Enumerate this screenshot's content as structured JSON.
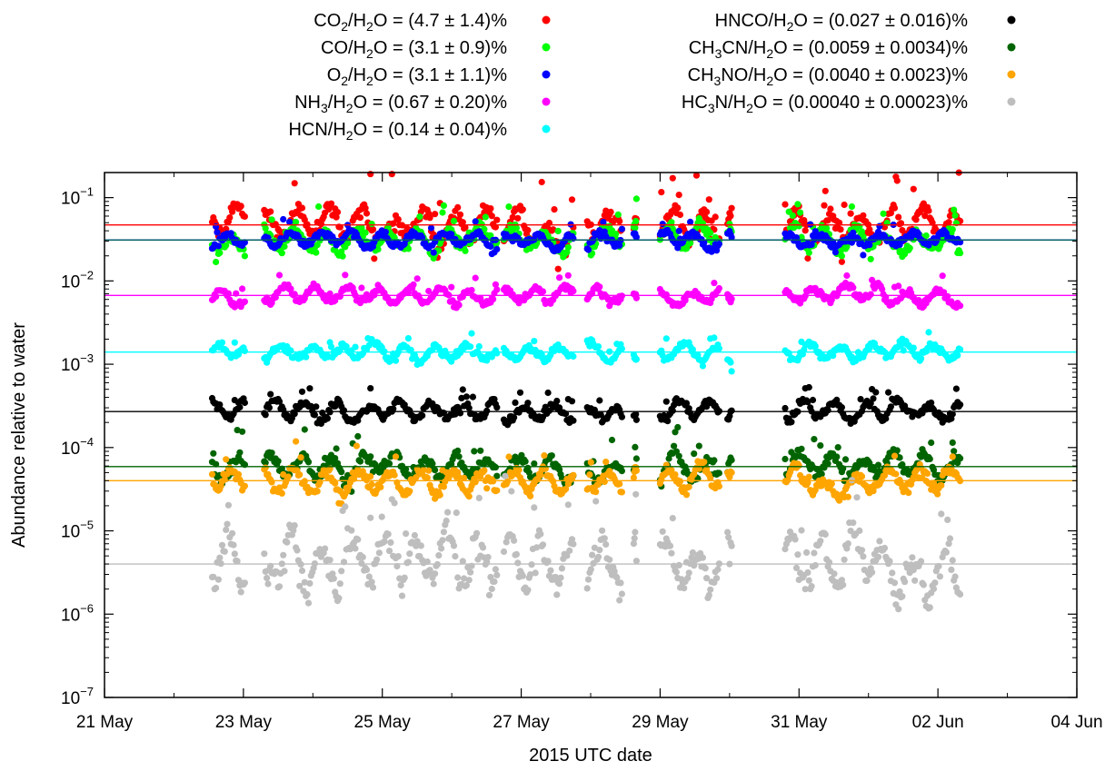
{
  "chart_data": {
    "type": "scatter",
    "title": "",
    "xlabel": "2015 UTC date",
    "ylabel": "Abundance relative to water",
    "yscale": "log",
    "xlim_days_label": [
      "2015-05-21",
      "2015-06-04"
    ],
    "xlim": [
      0,
      14
    ],
    "ylim": [
      1e-07,
      0.2
    ],
    "x_tick_labels": [
      "21 May",
      "23 May",
      "25 May",
      "27 May",
      "29 May",
      "31 May",
      "02 Jun",
      "04 Jun"
    ],
    "x_tick_values": [
      0,
      2,
      4,
      6,
      8,
      10,
      12,
      14
    ],
    "y_tick_labels": [
      {
        "base": "10",
        "exp": "−1",
        "value": 0.1
      },
      {
        "base": "10",
        "exp": "−2",
        "value": 0.01
      },
      {
        "base": "10",
        "exp": "−3",
        "value": 0.001
      },
      {
        "base": "10",
        "exp": "−4",
        "value": 0.0001
      },
      {
        "base": "10",
        "exp": "−5",
        "value": 1e-05
      },
      {
        "base": "10",
        "exp": "−6",
        "value": 1e-06
      },
      {
        "base": "10",
        "exp": "−7",
        "value": 1e-07
      }
    ],
    "grid": false,
    "legend_placement": "top, outside plot, two columns",
    "series": [
      {
        "name_parts": [
          [
            "CO",
            ""
          ],
          [
            "2",
            "sub"
          ],
          [
            "/H",
            ""
          ],
          [
            "2",
            "sub"
          ],
          [
            "O = (4.7 ± 1.4)%",
            ""
          ]
        ],
        "color": "#ff0000",
        "mean": 0.047,
        "noise": 0.28,
        "spike": 0.35
      },
      {
        "name_parts": [
          [
            "CO/H",
            ""
          ],
          [
            "2",
            "sub"
          ],
          [
            "O = (3.1 ± 0.9)%",
            ""
          ]
        ],
        "color": "#00ff00",
        "mean": 0.031,
        "noise": 0.2,
        "spike": 0.18
      },
      {
        "name_parts": [
          [
            "O",
            ""
          ],
          [
            "2",
            "sub"
          ],
          [
            "/H",
            ""
          ],
          [
            "2",
            "sub"
          ],
          [
            "O = (3.1 ± 1.1)%",
            ""
          ]
        ],
        "color": "#0000ff",
        "mean": 0.031,
        "noise": 0.12,
        "spike": 0.12
      },
      {
        "name_parts": [
          [
            "NH",
            ""
          ],
          [
            "3",
            "sub"
          ],
          [
            "/H",
            ""
          ],
          [
            "2",
            "sub"
          ],
          [
            "O = (0.67 ± 0.20)%",
            ""
          ]
        ],
        "color": "#ff00ff",
        "mean": 0.0067,
        "noise": 0.13,
        "spike": 0.1
      },
      {
        "name_parts": [
          [
            "HCN/H",
            ""
          ],
          [
            "2",
            "sub"
          ],
          [
            "O = (0.14 ± 0.04)%",
            ""
          ]
        ],
        "color": "#00ffff",
        "mean": 0.0014,
        "noise": 0.13,
        "spike": 0.1
      },
      {
        "name_parts": [
          [
            "HNCO/H",
            ""
          ],
          [
            "2",
            "sub"
          ],
          [
            "O = (0.027 ± 0.016)%",
            ""
          ]
        ],
        "color": "#000000",
        "mean": 0.00027,
        "noise": 0.15,
        "spike": 0.12
      },
      {
        "name_parts": [
          [
            "CH",
            ""
          ],
          [
            "3",
            "sub"
          ],
          [
            "CN/H",
            ""
          ],
          [
            "2",
            "sub"
          ],
          [
            "O = (0.0059 ± 0.0034)%",
            ""
          ]
        ],
        "color": "#006400",
        "mean": 5.9e-05,
        "noise": 0.2,
        "spike": 0.18
      },
      {
        "name_parts": [
          [
            "CH",
            ""
          ],
          [
            "3",
            "sub"
          ],
          [
            "NO/H",
            ""
          ],
          [
            "2",
            "sub"
          ],
          [
            "O = (0.0040 ± 0.0023)%",
            ""
          ]
        ],
        "color": "#ffa500",
        "mean": 4e-05,
        "noise": 0.2,
        "spike": 0.15
      },
      {
        "name_parts": [
          [
            "HC",
            ""
          ],
          [
            "3",
            "sub"
          ],
          [
            "N/H",
            ""
          ],
          [
            "2",
            "sub"
          ],
          [
            "O = (0.00040 ± 0.00023)%",
            ""
          ]
        ],
        "color": "#bebebe",
        "mean": 4e-06,
        "noise": 0.45,
        "spike": 0.35
      }
    ],
    "mean_lines": [
      {
        "value": 0.047,
        "color": "#ff0000"
      },
      {
        "value": 0.031,
        "color": "#00ff00"
      },
      {
        "value": 0.031,
        "color": "#0000ff"
      },
      {
        "value": 0.031,
        "color": "#006060"
      },
      {
        "value": 0.0067,
        "color": "#ff00ff"
      },
      {
        "value": 0.0014,
        "color": "#00ffff"
      },
      {
        "value": 0.00027,
        "color": "#000000"
      },
      {
        "value": 5.9e-05,
        "color": "#006400"
      },
      {
        "value": 4e-05,
        "color": "#ffa500"
      },
      {
        "value": 4e-06,
        "color": "#bebebe"
      }
    ],
    "observation_segments": [
      [
        1.55,
        2.02
      ],
      [
        2.3,
        5.65
      ],
      [
        5.75,
        6.75
      ],
      [
        6.95,
        7.45
      ],
      [
        7.62,
        7.66
      ],
      [
        8.0,
        8.85
      ],
      [
        8.97,
        9.03
      ],
      [
        9.8,
        12.32
      ]
    ]
  }
}
